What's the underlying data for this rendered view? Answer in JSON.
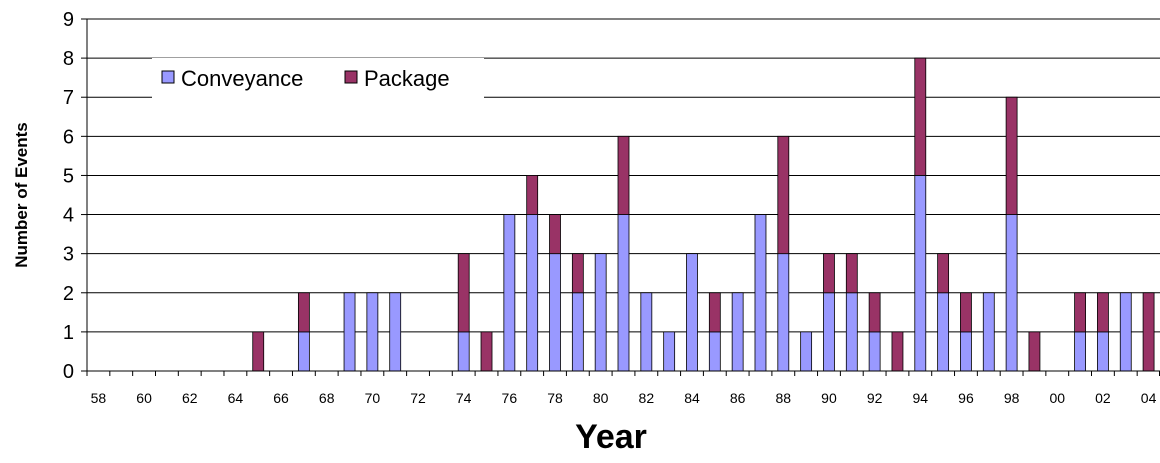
{
  "chart_data": {
    "type": "bar",
    "stacked": true,
    "title": "",
    "xlabel": "Year",
    "ylabel": "Number of Events",
    "ylim": [
      0,
      9
    ],
    "yticks": [
      "0",
      "1",
      "2",
      "3",
      "4",
      "5",
      "6",
      "7",
      "8",
      "9"
    ],
    "grid": true,
    "legend": {
      "position": "top-left",
      "entries": [
        "Conveyance",
        "Package"
      ]
    },
    "categories": [
      "58",
      "59",
      "60",
      "61",
      "62",
      "63",
      "64",
      "65",
      "66",
      "67",
      "68",
      "69",
      "70",
      "71",
      "72",
      "73",
      "74",
      "75",
      "76",
      "77",
      "78",
      "79",
      "80",
      "81",
      "82",
      "83",
      "84",
      "85",
      "86",
      "87",
      "88",
      "89",
      "90",
      "91",
      "92",
      "93",
      "94",
      "95",
      "96",
      "97",
      "98",
      "99",
      "00",
      "01",
      "02",
      "03",
      "04"
    ],
    "tick_labels": [
      "58",
      "60",
      "62",
      "64",
      "66",
      "68",
      "70",
      "72",
      "74",
      "76",
      "78",
      "80",
      "82",
      "84",
      "86",
      "88",
      "90",
      "92",
      "94",
      "96",
      "98",
      "00",
      "02",
      "04"
    ],
    "series": [
      {
        "name": "Conveyance",
        "color": "#9999ff",
        "values": [
          0,
          0,
          0,
          0,
          0,
          0,
          0,
          0,
          0,
          1,
          0,
          2,
          2,
          2,
          0,
          0,
          1,
          0,
          4,
          4,
          3,
          2,
          3,
          4,
          2,
          1,
          3,
          1,
          2,
          4,
          3,
          1,
          2,
          2,
          1,
          0,
          5,
          2,
          1,
          2,
          4,
          0,
          0,
          1,
          1,
          2,
          0
        ]
      },
      {
        "name": "Package",
        "color": "#993366",
        "values": [
          0,
          0,
          0,
          0,
          0,
          0,
          0,
          1,
          0,
          1,
          0,
          0,
          0,
          0,
          0,
          0,
          2,
          1,
          0,
          1,
          1,
          1,
          0,
          2,
          0,
          0,
          0,
          1,
          0,
          0,
          3,
          0,
          1,
          1,
          1,
          1,
          3,
          1,
          1,
          0,
          3,
          1,
          0,
          1,
          1,
          0,
          2
        ]
      }
    ]
  }
}
